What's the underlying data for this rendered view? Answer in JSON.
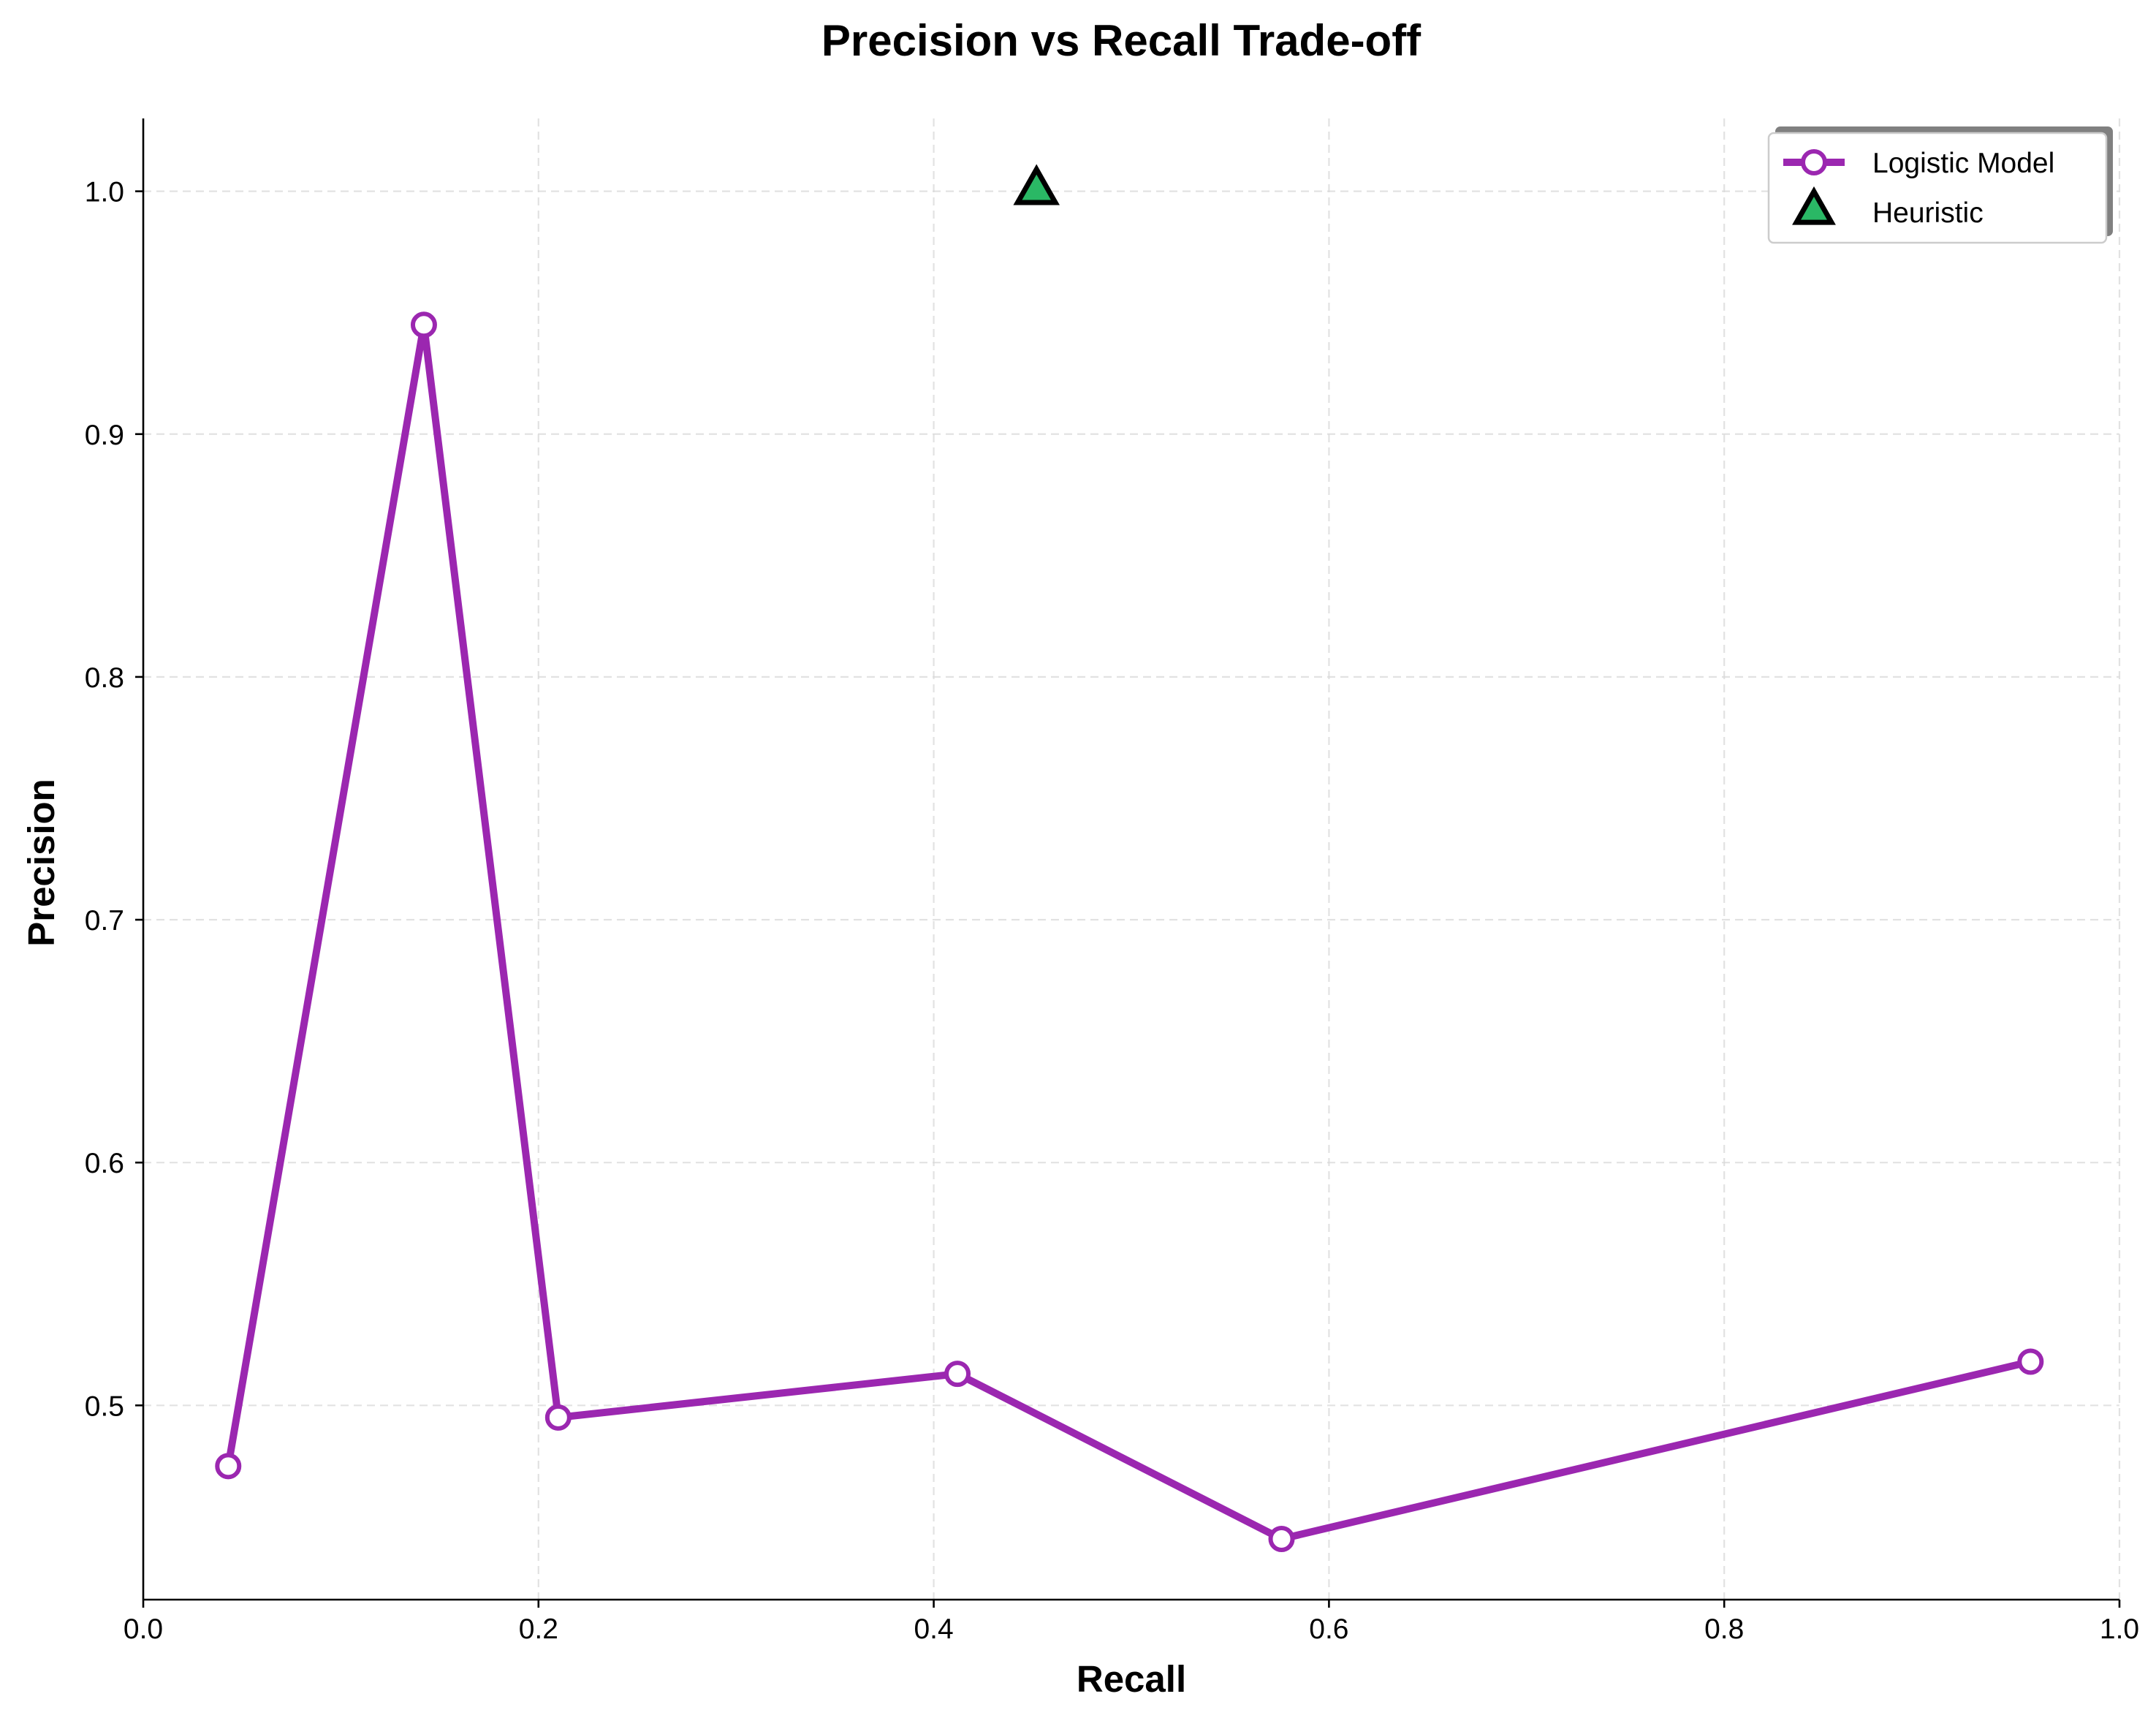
{
  "chart_data": {
    "type": "line",
    "title": "Precision vs Recall Trade-off",
    "xlabel": "Recall",
    "ylabel": "Precision",
    "xlim": [
      0.0,
      1.0
    ],
    "ylim": [
      0.42,
      1.03
    ],
    "x_ticks": [
      "0.0",
      "0.2",
      "0.4",
      "0.6",
      "0.8",
      "1.0"
    ],
    "y_ticks": [
      "0.5",
      "0.6",
      "0.7",
      "0.8",
      "0.9",
      "1.0"
    ],
    "grid": true,
    "legend_position": "top-right",
    "series": [
      {
        "name": "Logistic Model",
        "kind": "line",
        "marker": "circle",
        "color": "#9b27b0",
        "marker_face": "#ffffff",
        "x": [
          0.043,
          0.142,
          0.21,
          0.412,
          0.576,
          0.955
        ],
        "y": [
          0.475,
          0.945,
          0.495,
          0.513,
          0.445,
          0.518
        ]
      },
      {
        "name": "Heuristic",
        "kind": "scatter",
        "marker": "triangle",
        "color": "#2ab865",
        "edge_color": "#000000",
        "x": [
          0.452
        ],
        "y": [
          1.0
        ]
      }
    ]
  }
}
